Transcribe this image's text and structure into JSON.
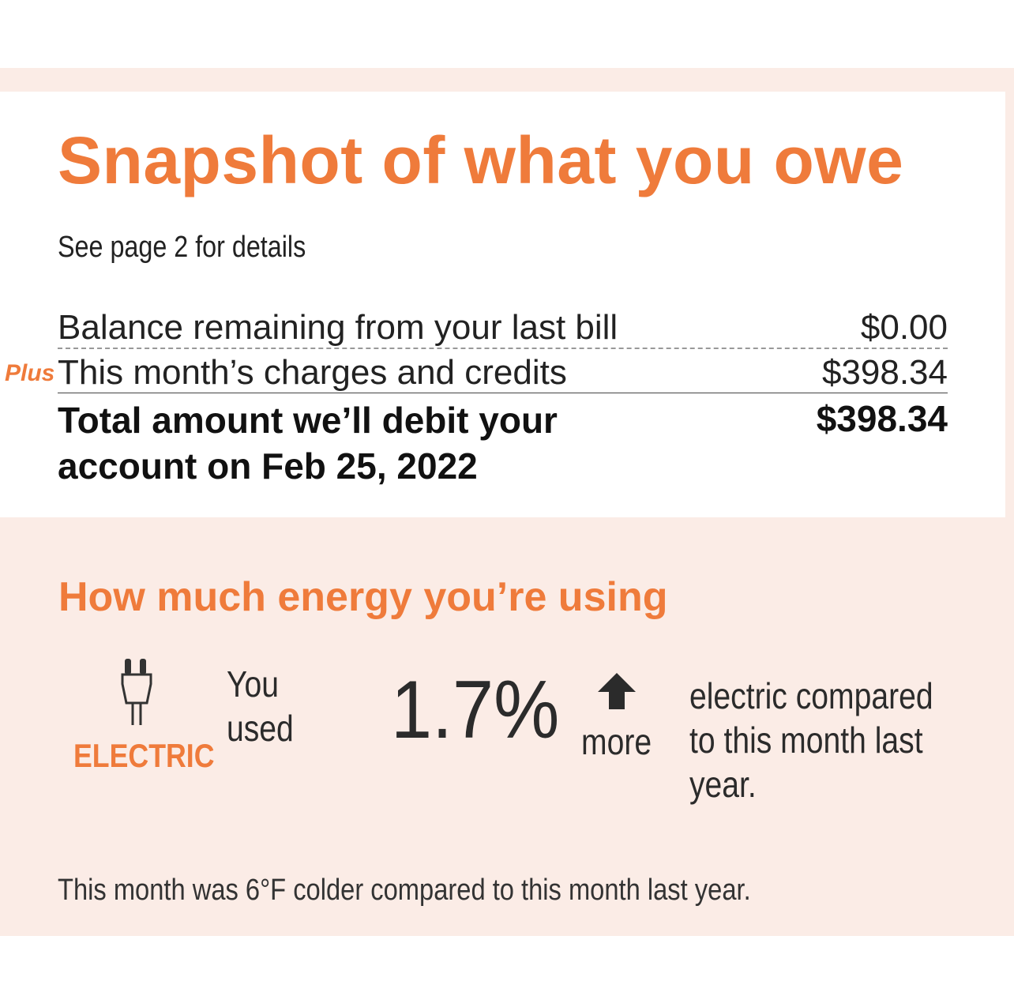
{
  "snapshot": {
    "title": "Snapshot of what you owe",
    "subtitle": "See page 2 for details",
    "lines": [
      {
        "label": "Balance remaining from your last bill",
        "amount": "$0.00"
      },
      {
        "prefix": "Plus",
        "label": "This month’s charges and credits",
        "amount": "$398.34"
      }
    ],
    "total": {
      "label_line1": "Total amount we’ll debit your",
      "label_line2": "account on Feb 25, 2022",
      "amount": "$398.34"
    }
  },
  "energy": {
    "title": "How much energy you’re using",
    "icon": "plug-icon",
    "type_label": "ELECTRIC",
    "you_used_line1": "You",
    "you_used_line2": "used",
    "percent": "1.7%",
    "direction_icon": "arrow-up-icon",
    "direction": "more",
    "compare_line1": "electric compared",
    "compare_line2": "to this month last",
    "compare_line3": "year.",
    "weather_note": "This month was 6°F colder compared to this month last year."
  },
  "colors": {
    "accent": "#ef7b3b",
    "band": "#fbece6"
  }
}
